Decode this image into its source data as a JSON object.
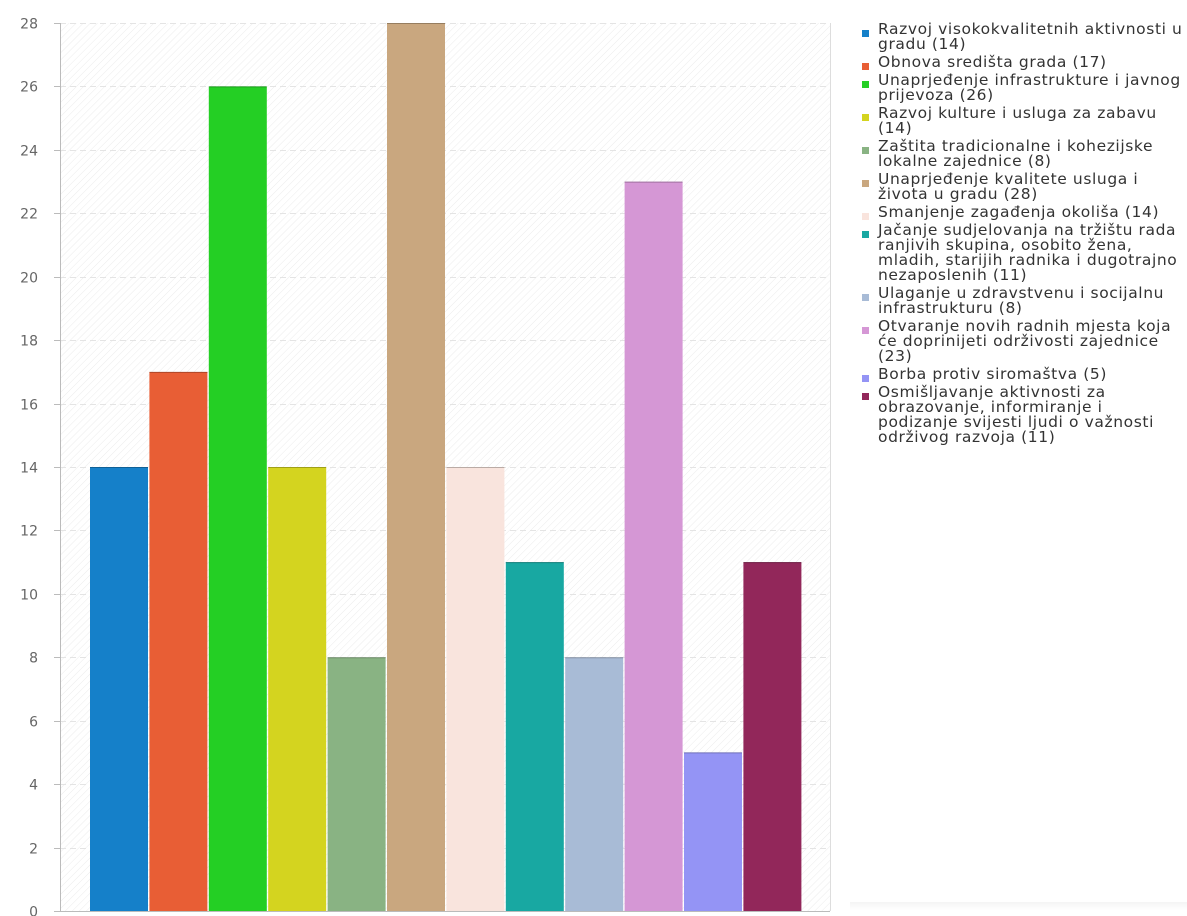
{
  "chart_data": {
    "type": "bar",
    "title": "",
    "xlabel": "",
    "ylabel": "",
    "ylim": [
      0,
      28
    ],
    "yticks": [
      0,
      2,
      4,
      6,
      8,
      10,
      12,
      14,
      16,
      18,
      20,
      22,
      24,
      26,
      28
    ],
    "grid": true,
    "legend_position": "right",
    "categories": [
      "Razvoj visokokvalitetnih aktivnosti u gradu",
      "Obnova središta grada",
      "Unaprjeđenje infrastrukture i javnog prijevoza",
      "Razvoj kulture i usluga za zabavu",
      "Zaštita tradicionalne i kohezijske lokalne zajednice",
      "Unaprjeđenje kvalitete usluga i života u gradu",
      "Smanjenje zagađenja okoliša",
      "Jačanje sudjelovanja na tržištu rada ranjivih skupina, osobito žena, mladih, starijih radnika i dugotrajno nezaposlenih",
      "Ulaganje u zdravstvenu i socijalnu infrastrukturu",
      "Otvaranje novih radnih mjesta koja će doprinijeti održivosti zajednice",
      "Borba protiv siromaštva",
      "Osmišljavanje aktivnosti za obrazovanje, informiranje i podizanje svijesti ljudi o važnosti održivog razvoja"
    ],
    "values": [
      14,
      17,
      26,
      14,
      8,
      28,
      14,
      11,
      8,
      23,
      5,
      11
    ],
    "legend_labels": [
      "Razvoj visokokvalitetnih aktivnosti u gradu (14)",
      "Obnova središta grada (17)",
      "Unaprjeđenje infrastrukture i javnog prijevoza (26)",
      "Razvoj kulture i usluga za zabavu (14)",
      "Zaštita tradicionalne i kohezijske lokalne zajednice (8)",
      "Unaprjeđenje kvalitete usluga i života u gradu (28)",
      "Smanjenje zagađenja okoliša (14)",
      "Jačanje sudjelovanja na tržištu rada ranjivih skupina, osobito žena, mladih, starijih radnika i dugotrajno nezaposlenih (11)",
      "Ulaganje u zdravstvenu i socijalnu infrastrukturu (8)",
      "Otvaranje novih radnih mjesta koja će doprinijeti održivosti zajednice (23)",
      "Borba protiv siromaštva (5)",
      "Osmišljavanje aktivnosti za obrazovanje, informiranje i podizanje svijesti ljudi o važnosti održivog razvoja (11)"
    ],
    "colors": [
      "#1580c9",
      "#e85e35",
      "#24cf24",
      "#d4d41f",
      "#89b383",
      "#c9a77f",
      "#f9e4dd",
      "#18a8a2",
      "#a8bbd6",
      "#d597d5",
      "#9494f5",
      "#92275a"
    ]
  }
}
